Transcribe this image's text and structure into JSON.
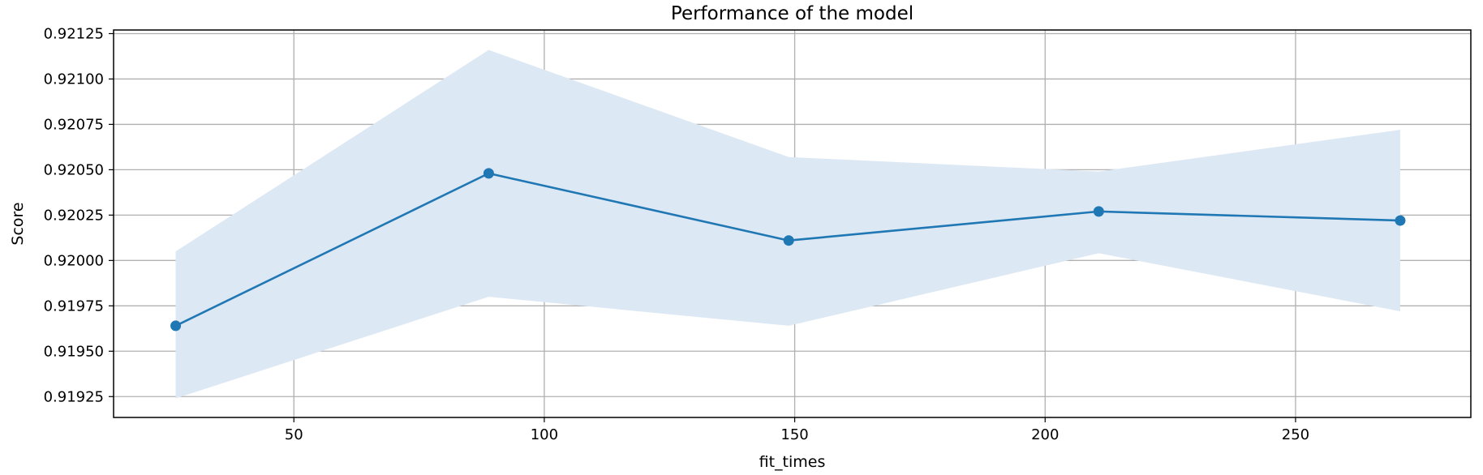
{
  "chart_data": {
    "type": "line",
    "title": "Performance of the model",
    "xlabel": "fit_times",
    "ylabel": "Score",
    "xlim": [
      14,
      285
    ],
    "ylim": [
      0.919135,
      0.92127
    ],
    "xticks": [
      50,
      100,
      150,
      200,
      250
    ],
    "yticks": [
      0.91925,
      0.9195,
      0.91975,
      0.92,
      0.92025,
      0.9205,
      0.92075,
      0.921,
      0.92125
    ],
    "ytick_labels": [
      "0.91925",
      "0.91950",
      "0.91975",
      "0.92000",
      "0.92025",
      "0.92050",
      "0.92075",
      "0.92100",
      "0.92125"
    ],
    "grid": true,
    "series": [
      {
        "x": [
          26.4,
          88.9,
          148.8,
          210.7,
          270.9
        ],
        "y": [
          0.91964,
          0.92048,
          0.92011,
          0.92027,
          0.92022
        ],
        "upper": [
          0.92005,
          0.92116,
          0.92057,
          0.92049,
          0.92072
        ],
        "lower": [
          0.91924,
          0.9198,
          0.91964,
          0.92004,
          0.91972
        ],
        "color": "#1f77b4",
        "band_color": "#dde8f5",
        "marker": "o"
      }
    ]
  }
}
